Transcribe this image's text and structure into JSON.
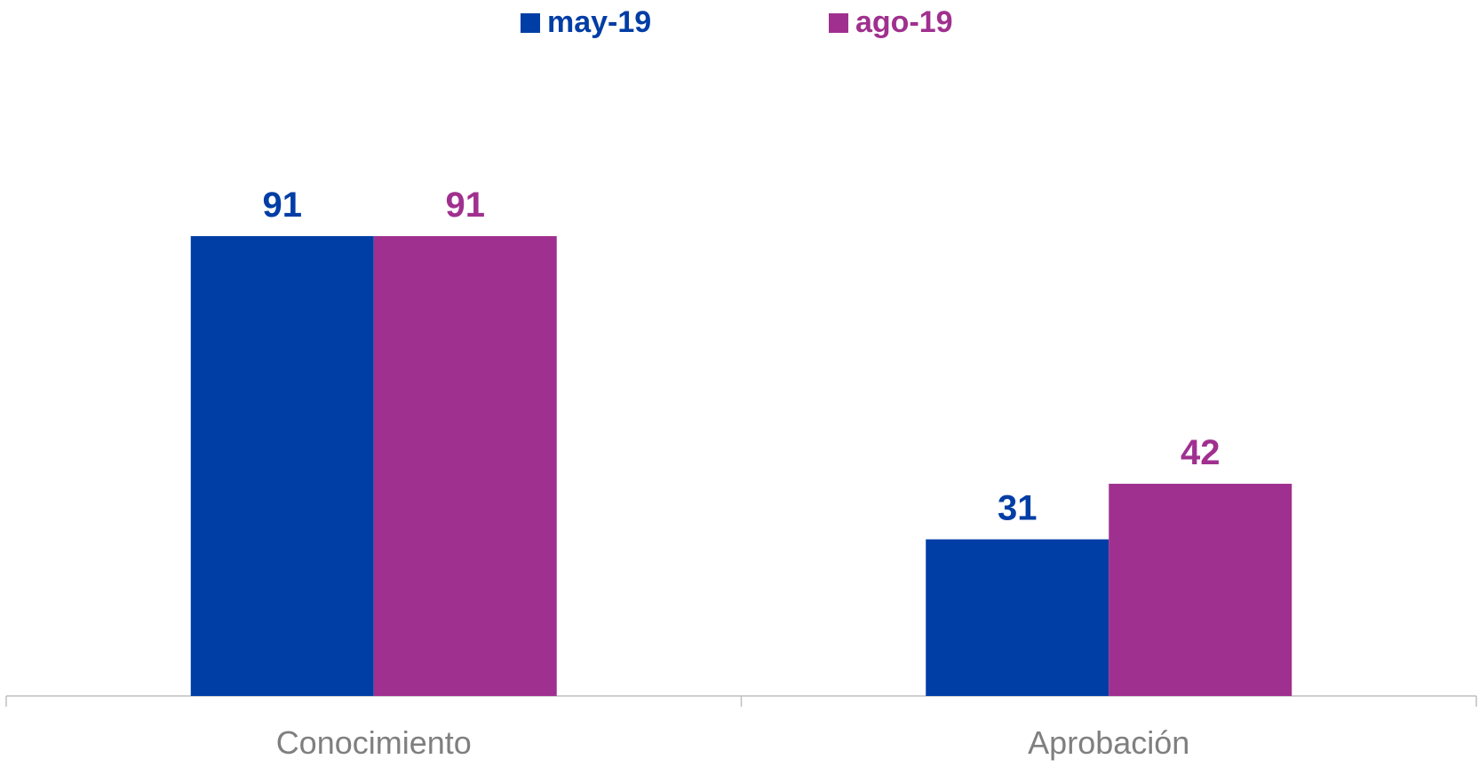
{
  "chart_data": {
    "type": "bar",
    "categories": [
      "Conocimiento",
      "Aprobación"
    ],
    "series": [
      {
        "name": "may-19",
        "values": [
          91,
          31
        ],
        "color": "#003da5"
      },
      {
        "name": "ago-19",
        "values": [
          91,
          42
        ],
        "color": "#a0308f"
      }
    ],
    "ylim": [
      0,
      100
    ],
    "grid": false,
    "legend": "top-center",
    "data_labels": true
  }
}
